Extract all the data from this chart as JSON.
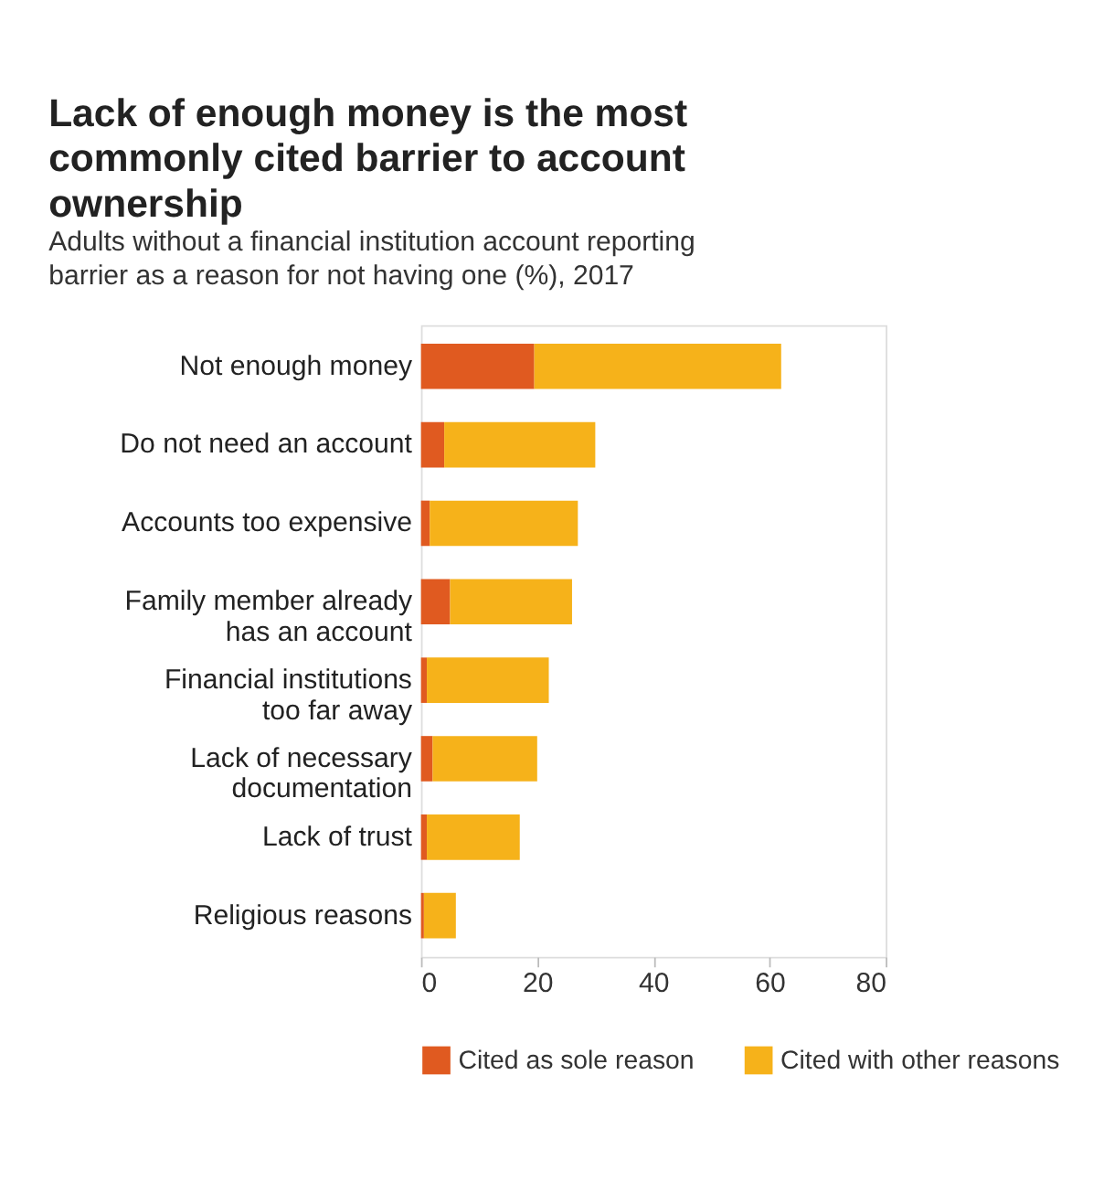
{
  "chart_data": {
    "type": "bar",
    "orientation": "horizontal",
    "stacked": true,
    "title": "Lack of enough money is the most\ncommonly cited barrier to account\nownership",
    "subtitle": "Adults without a financial institution account reporting\nbarrier as a reason for not having one (%), 2017",
    "categories": [
      "Not enough money",
      "Do not need an account",
      "Accounts too expensive",
      "Family member already\nhas an account",
      "Financial institutions\ntoo far away",
      "Lack of necessary\ndocumentation",
      "Lack of trust",
      "Religious reasons"
    ],
    "series": [
      {
        "name": "Cited as sole reason",
        "color": "#e05a20",
        "values": [
          19.5,
          4,
          1.5,
          5,
          1,
          2,
          1,
          0.5
        ]
      },
      {
        "name": "Cited with other reasons",
        "color": "#f6b21a",
        "values": [
          42.5,
          26,
          25.5,
          21,
          21,
          18,
          16,
          5.5
        ]
      }
    ],
    "xlim": [
      0,
      80
    ],
    "xticks": [
      0,
      20,
      40,
      60,
      80
    ],
    "grid": false,
    "legend": "bottom"
  }
}
